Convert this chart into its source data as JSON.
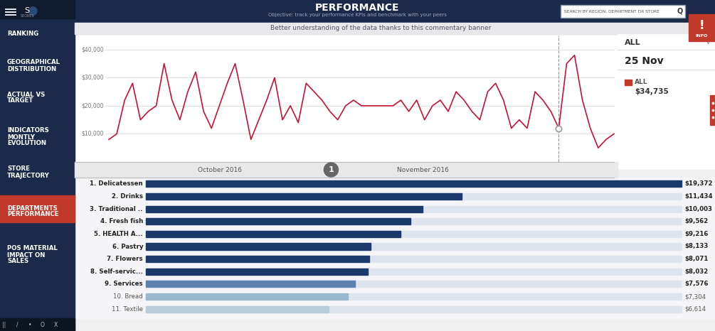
{
  "title": "PERFORMANCE",
  "subtitle": "Objective: track your performance KPIs and benchmark with your peers",
  "commentary": "Better understanding of the data thanks to this commentary banner",
  "search_label": "SEARCH BY REGION, DEPARTMENT OR STORE",
  "sidebar_bg": "#1b2a4a",
  "sidebar_items": [
    "RANKING",
    "GEOGRAPHICAL\nDISTRIBUTION",
    "ACTUAL VS\nTARGET",
    "INDICATORS\nMONTLY\nEVOLUTION",
    "STORE\nTRAJECTORY",
    "DEPARTMENTS\nPERFORMANCE",
    "POS MATERIAL\nIMPACT ON\nSALES"
  ],
  "sidebar_active": 5,
  "panel_date": "25 Nov",
  "panel_label": "ALL",
  "panel_value": "$34,735",
  "bar_categories": [
    "1. Delicatessen",
    "2. Drinks",
    "3. Traditional ..",
    "4. Fresh fish",
    "5. HEALTH A...",
    "6. Pastry",
    "7. Flowers",
    "8. Self-servic...",
    "9. Services",
    "10. Bread",
    "11. Textile"
  ],
  "bar_values": [
    19372,
    11434,
    10003,
    9562,
    9216,
    8133,
    8071,
    8032,
    7576,
    7304,
    6614
  ],
  "bar_value_labels": [
    "$19,372",
    "$11,434",
    "$10,003",
    "$9,562",
    "$9,216",
    "$8,133",
    "$8,071",
    "$8,032",
    "$7,576",
    "$7,304",
    "$6,614"
  ],
  "bar_max": 19372,
  "ytick_vals": [
    10000,
    20000,
    30000,
    40000
  ],
  "ytick_labels": [
    "$10,000",
    "$20,000",
    "$30,000",
    "$40,000"
  ],
  "x_labels": [
    "October 2016",
    "November 2016"
  ],
  "line_color": "#cc1133",
  "circle_marker_color": "#888888",
  "time_circle_label": "1",
  "line_data": [
    8000,
    10000,
    22000,
    28000,
    15000,
    18000,
    20000,
    35000,
    22000,
    15000,
    25000,
    32000,
    18000,
    12000,
    20000,
    28000,
    35000,
    22000,
    8000,
    15000,
    22000,
    30000,
    15000,
    20000,
    14000,
    28000,
    25000,
    22000,
    18000,
    15000,
    20000,
    22000,
    20000,
    20000,
    20000,
    20000,
    20000,
    22000,
    18000,
    22000,
    15000,
    20000,
    22000,
    18000,
    25000,
    22000,
    18000,
    15000,
    25000,
    28000,
    22000,
    12000,
    15000,
    12000,
    25000,
    22000,
    18000,
    12000,
    35000,
    38000,
    22000,
    12000,
    5000,
    8000,
    10000
  ]
}
